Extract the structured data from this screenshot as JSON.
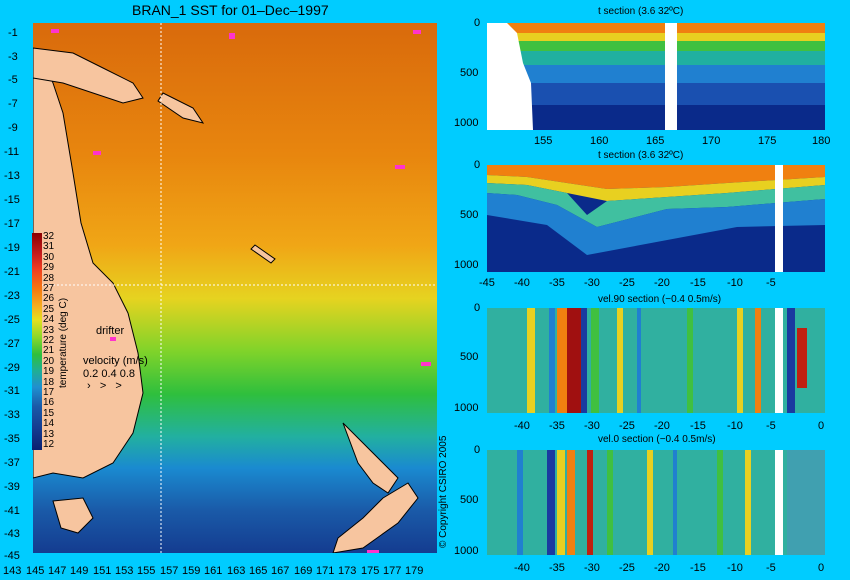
{
  "map": {
    "title": "BRAN_1 SST for 01–Dec–1997",
    "lat_ticks": [
      "-1",
      "-3",
      "-5",
      "-7",
      "-9",
      "-11",
      "-13",
      "-15",
      "-17",
      "-19",
      "-21",
      "-23",
      "-25",
      "-27",
      "-29",
      "-31",
      "-33",
      "-35",
      "-37",
      "-39",
      "-41",
      "-43",
      "-45"
    ],
    "lon_ticks": [
      "143",
      "145",
      "147",
      "149",
      "151",
      "153",
      "155",
      "157",
      "159",
      "161",
      "163",
      "165",
      "167",
      "169",
      "171",
      "173",
      "175",
      "177",
      "179"
    ],
    "colorbar_title": "temperature (deg C)",
    "colorbar_ticks": [
      "32",
      "31",
      "30",
      "29",
      "28",
      "27",
      "26",
      "25",
      "24",
      "23",
      "22",
      "21",
      "20",
      "19",
      "18",
      "17",
      "16",
      "15",
      "14",
      "13",
      "12"
    ],
    "drifter_label": "drifter",
    "velocity_label": "velocity (m/s)",
    "velocity_scale": "0.2 0.4 0.8",
    "copyright": "© Copyright CSIRO 2005",
    "colors": {
      "land": "#f7c59f",
      "sea_warm": "#e07a10",
      "sea_cool": "#1a5aa8",
      "drifter": "#ff33cc",
      "background": "#00ccff"
    }
  },
  "sections": [
    {
      "title": "t section (3.6       32ºC)",
      "y_ticks": [
        "0",
        "500",
        "1000"
      ],
      "x_ticks": [
        "155",
        "160",
        "165",
        "170",
        "175",
        "180"
      ]
    },
    {
      "title": "t section (3.6       32ºC)",
      "y_ticks": [
        "0",
        "500",
        "1000"
      ],
      "x_ticks": [
        "-45",
        "-40",
        "-35",
        "-30",
        "-25",
        "-20",
        "-15",
        "-10",
        "-5"
      ]
    },
    {
      "title": "vel.90 section (−0.4       0.5m/s)",
      "y_ticks": [
        "0",
        "500",
        "1000"
      ],
      "x_ticks": [
        "-40",
        "-35",
        "-30",
        "-25",
        "-20",
        "-15",
        "-10",
        "-5",
        "0"
      ]
    },
    {
      "title": "vel.0 section (−0.4       0.5m/s)",
      "y_ticks": [
        "0",
        "500",
        "1000"
      ],
      "x_ticks": [
        "-40",
        "-35",
        "-30",
        "-25",
        "-20",
        "-15",
        "-10",
        "-5",
        "0"
      ]
    }
  ]
}
